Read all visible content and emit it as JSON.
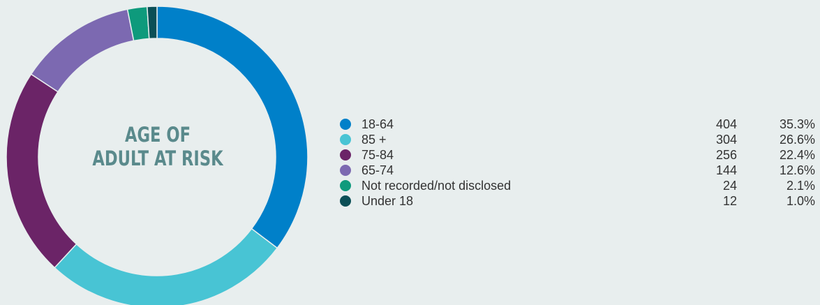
{
  "chart_data": {
    "type": "pie",
    "title_lines": [
      "AGE OF",
      "ADULT AT RISK"
    ],
    "slices": [
      {
        "label": "18-64",
        "value": 404,
        "percent": "35.3%",
        "color": "#0080c9"
      },
      {
        "label": "85 +",
        "value": 304,
        "percent": "26.6%",
        "color": "#48c4d4"
      },
      {
        "label": "75-84",
        "value": 256,
        "percent": "22.4%",
        "color": "#6b2467"
      },
      {
        "label": "65-74",
        "value": 144,
        "percent": "12.6%",
        "color": "#7c69b1"
      },
      {
        "label": "Not recorded/not disclosed",
        "value": 24,
        "percent": "2.1%",
        "color": "#0e9a7c"
      },
      {
        "label": "Under 18",
        "value": 12,
        "percent": "1.0%",
        "color": "#0b4f56"
      }
    ]
  }
}
